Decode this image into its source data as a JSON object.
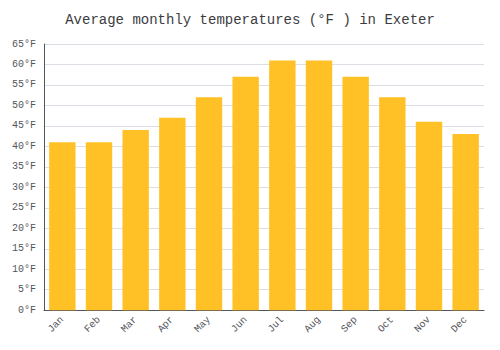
{
  "chart_data": {
    "type": "bar",
    "title": "Average monthly temperatures (°F ) in Exeter",
    "categories": [
      "Jan",
      "Feb",
      "Mar",
      "Apr",
      "May",
      "Jun",
      "Jul",
      "Aug",
      "Sep",
      "Oct",
      "Nov",
      "Dec"
    ],
    "values": [
      41,
      41,
      44,
      47,
      52,
      57,
      61,
      61,
      57,
      52,
      46,
      43
    ],
    "color": "#FFC125",
    "ylim": [
      0,
      65
    ],
    "yticks": [
      {
        "value": 0,
        "label": "0°F"
      },
      {
        "value": 5,
        "label": "5°F"
      },
      {
        "value": 10,
        "label": "10°F"
      },
      {
        "value": 15,
        "label": "15°F"
      },
      {
        "value": 20,
        "label": "20°F"
      },
      {
        "value": 25,
        "label": "25°F"
      },
      {
        "value": 30,
        "label": "30°F"
      },
      {
        "value": 35,
        "label": "35°F"
      },
      {
        "value": 40,
        "label": "40°F"
      },
      {
        "value": 45,
        "label": "45°F"
      },
      {
        "value": 50,
        "label": "50°F"
      },
      {
        "value": 55,
        "label": "55°F"
      },
      {
        "value": 60,
        "label": "60°F"
      },
      {
        "value": 65,
        "label": "65°F"
      }
    ],
    "grid": true
  }
}
